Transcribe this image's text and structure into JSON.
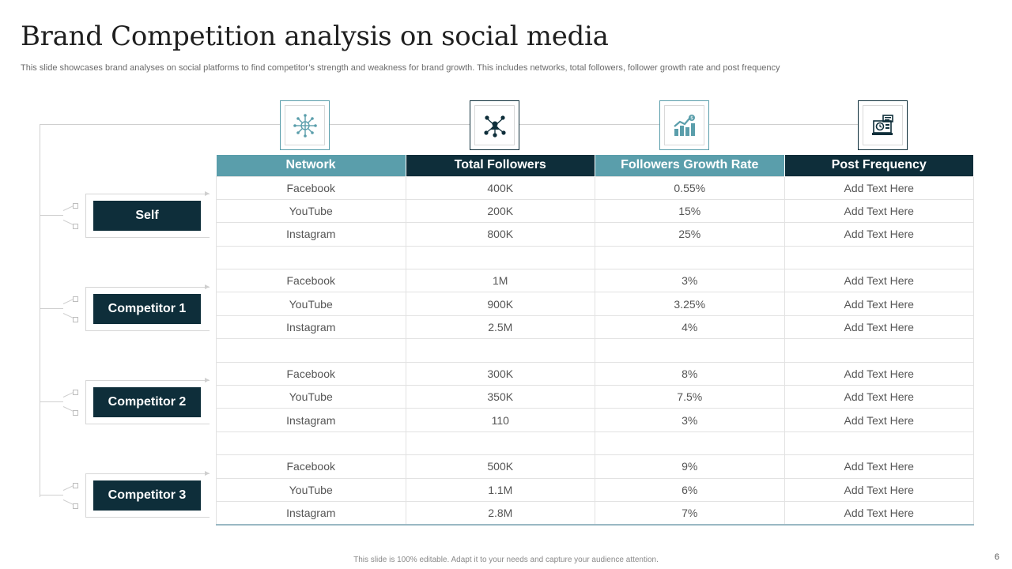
{
  "title": "Brand Competition analysis on social media",
  "subtitle": "This slide showcases brand analyses on social  platforms to find competitor’s strength and weakness for brand growth. This includes networks, total followers, follower growth rate and post frequency",
  "icons": [
    "network-globe-icon",
    "people-network-icon",
    "growth-chart-icon",
    "schedule-monitor-icon"
  ],
  "colors": {
    "teal": "#5a9eab",
    "dark": "#0e2e3a"
  },
  "entities": [
    "Self",
    "Competitor 1",
    "Competitor 2",
    "Competitor 3"
  ],
  "table": {
    "headers": [
      "Network",
      "Total Followers",
      "Followers Growth Rate",
      "Post Frequency"
    ],
    "rows": [
      [
        "Facebook",
        "400K",
        "0.55%",
        "Add Text Here"
      ],
      [
        "YouTube",
        "200K",
        "15%",
        "Add Text Here"
      ],
      [
        "Instagram",
        "800K",
        "25%",
        "Add Text Here"
      ],
      [
        "",
        "",
        "",
        ""
      ],
      [
        "Facebook",
        "1M",
        "3%",
        "Add Text Here"
      ],
      [
        "YouTube",
        "900K",
        "3.25%",
        "Add Text Here"
      ],
      [
        "Instagram",
        "2.5M",
        "4%",
        "Add Text Here"
      ],
      [
        "",
        "",
        "",
        ""
      ],
      [
        "Facebook",
        "300K",
        "8%",
        "Add Text Here"
      ],
      [
        "YouTube",
        "350K",
        "7.5%",
        "Add Text Here"
      ],
      [
        "Instagram",
        "110",
        "3%",
        "Add Text Here"
      ],
      [
        "",
        "",
        "",
        ""
      ],
      [
        "Facebook",
        "500K",
        "9%",
        "Add Text Here"
      ],
      [
        "YouTube",
        "1.1M",
        "6%",
        "Add Text Here"
      ],
      [
        "Instagram",
        "2.8M",
        "7%",
        "Add Text Here"
      ]
    ]
  },
  "footer": "This slide is 100% editable.  Adapt it to your  needs and capture your audience attention.",
  "page_number": "6"
}
